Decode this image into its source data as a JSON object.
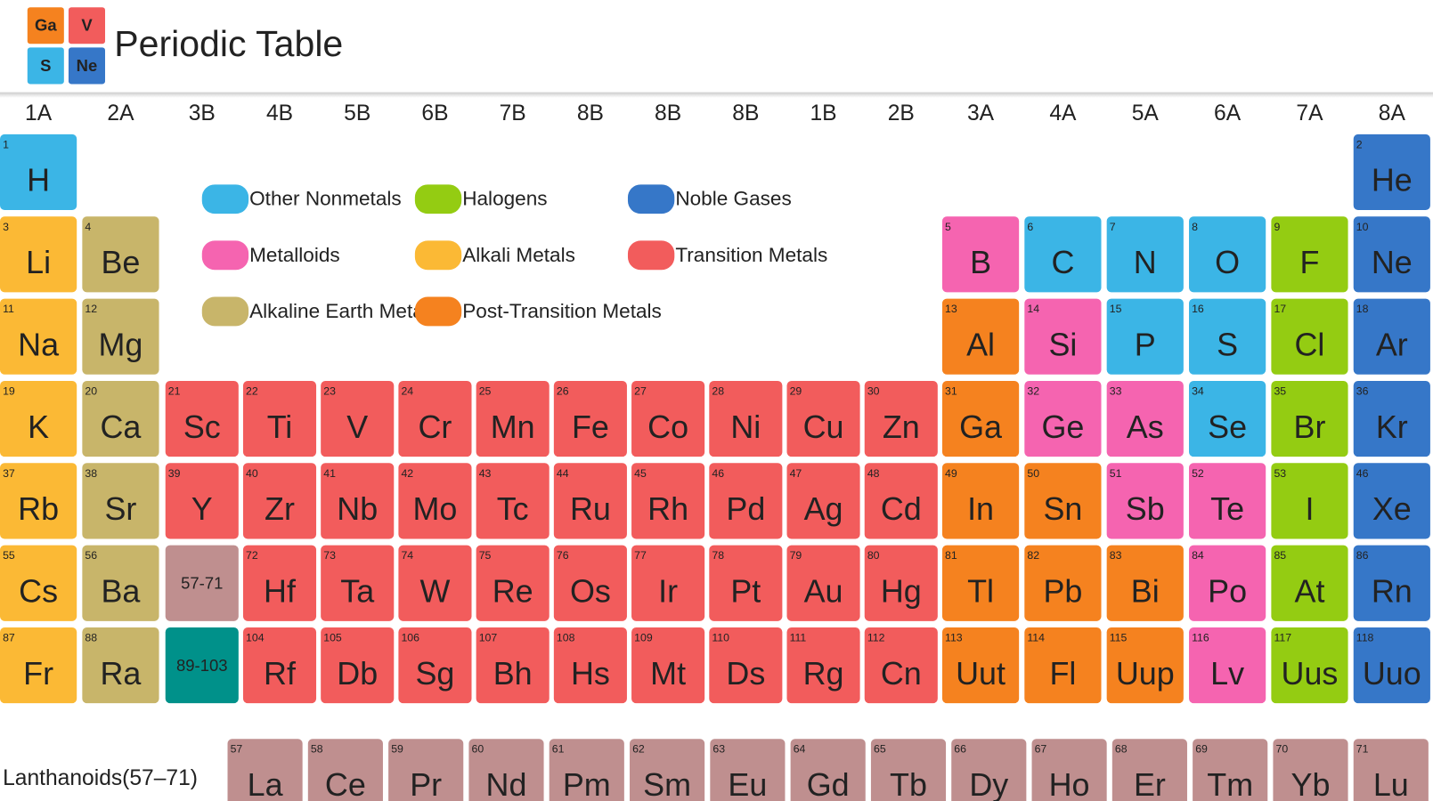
{
  "header": {
    "logo": [
      {
        "symbol": "Ga",
        "color": "#f5821f"
      },
      {
        "symbol": "V",
        "color": "#f25c5c"
      },
      {
        "symbol": "S",
        "color": "#3bb5e6"
      },
      {
        "symbol": "Ne",
        "color": "#3677c8"
      }
    ],
    "title": "Periodic Table"
  },
  "groups": [
    "1A",
    "2A",
    "3B",
    "4B",
    "5B",
    "6B",
    "7B",
    "8B",
    "8B",
    "8B",
    "1B",
    "2B",
    "3A",
    "4A",
    "5A",
    "6A",
    "7A",
    "8A"
  ],
  "legend": [
    {
      "name": "Other Nonmetals",
      "color": "#3bb5e6"
    },
    {
      "name": "Metalloids",
      "color": "#f564b0"
    },
    {
      "name": "Alkaline Earth Metals",
      "color": "#c8b56a"
    },
    {
      "name": "Halogens",
      "color": "#94cc12"
    },
    {
      "name": "Alkali Metals",
      "color": "#fbb935"
    },
    {
      "name": "Post-Transition Metals",
      "color": "#f5821f"
    },
    {
      "name": "Noble Gases",
      "color": "#3677c8"
    },
    {
      "name": "Transition Metals",
      "color": "#f25c5c"
    }
  ],
  "rows": [
    [
      {
        "number": 1,
        "symbol": "H",
        "color": "#3bb5e6"
      },
      {
        "number": 2,
        "symbol": "He",
        "color": "#3677c8"
      }
    ],
    [
      {
        "number": 3,
        "symbol": "Li",
        "color": "#fbb935"
      },
      {
        "number": 4,
        "symbol": "Be",
        "color": "#c8b56a"
      },
      {
        "number": 5,
        "symbol": "B",
        "color": "#f564b0"
      },
      {
        "number": 6,
        "symbol": "C",
        "color": "#3bb5e6"
      },
      {
        "number": 7,
        "symbol": "N",
        "color": "#3bb5e6"
      },
      {
        "number": 8,
        "symbol": "O",
        "color": "#3bb5e6"
      },
      {
        "number": 9,
        "symbol": "F",
        "color": "#94cc12"
      },
      {
        "number": 10,
        "symbol": "Ne",
        "color": "#3677c8"
      }
    ],
    [
      {
        "number": 11,
        "symbol": "Na",
        "color": "#fbb935"
      },
      {
        "number": 12,
        "symbol": "Mg",
        "color": "#c8b56a"
      },
      {
        "number": 13,
        "symbol": "Al",
        "color": "#f5821f"
      },
      {
        "number": 14,
        "symbol": "Si",
        "color": "#f564b0"
      },
      {
        "number": 15,
        "symbol": "P",
        "color": "#3bb5e6"
      },
      {
        "number": 16,
        "symbol": "S",
        "color": "#3bb5e6"
      },
      {
        "number": 17,
        "symbol": "Cl",
        "color": "#94cc12"
      },
      {
        "number": 18,
        "symbol": "Ar",
        "color": "#3677c8"
      }
    ],
    [
      {
        "number": 19,
        "symbol": "K",
        "color": "#fbb935"
      },
      {
        "number": 20,
        "symbol": "Ca",
        "color": "#c8b56a"
      },
      {
        "number": 21,
        "symbol": "Sc",
        "color": "#f25c5c"
      },
      {
        "number": 22,
        "symbol": "Ti",
        "color": "#f25c5c"
      },
      {
        "number": 23,
        "symbol": "V",
        "color": "#f25c5c"
      },
      {
        "number": 24,
        "symbol": "Cr",
        "color": "#f25c5c"
      },
      {
        "number": 25,
        "symbol": "Mn",
        "color": "#f25c5c"
      },
      {
        "number": 26,
        "symbol": "Fe",
        "color": "#f25c5c"
      },
      {
        "number": 27,
        "symbol": "Co",
        "color": "#f25c5c"
      },
      {
        "number": 28,
        "symbol": "Ni",
        "color": "#f25c5c"
      },
      {
        "number": 29,
        "symbol": "Cu",
        "color": "#f25c5c"
      },
      {
        "number": 30,
        "symbol": "Zn",
        "color": "#f25c5c"
      },
      {
        "number": 31,
        "symbol": "Ga",
        "color": "#f5821f"
      },
      {
        "number": 32,
        "symbol": "Ge",
        "color": "#f564b0"
      },
      {
        "number": 33,
        "symbol": "As",
        "color": "#f564b0"
      },
      {
        "number": 34,
        "symbol": "Se",
        "color": "#3bb5e6"
      },
      {
        "number": 35,
        "symbol": "Br",
        "color": "#94cc12"
      },
      {
        "number": 36,
        "symbol": "Kr",
        "color": "#3677c8"
      }
    ],
    [
      {
        "number": 37,
        "symbol": "Rb",
        "color": "#fbb935"
      },
      {
        "number": 38,
        "symbol": "Sr",
        "color": "#c8b56a"
      },
      {
        "number": 39,
        "symbol": "Y",
        "color": "#f25c5c"
      },
      {
        "number": 40,
        "symbol": "Zr",
        "color": "#f25c5c"
      },
      {
        "number": 41,
        "symbol": "Nb",
        "color": "#f25c5c"
      },
      {
        "number": 42,
        "symbol": "Mo",
        "color": "#f25c5c"
      },
      {
        "number": 43,
        "symbol": "Tc",
        "color": "#f25c5c"
      },
      {
        "number": 44,
        "symbol": "Ru",
        "color": "#f25c5c"
      },
      {
        "number": 45,
        "symbol": "Rh",
        "color": "#f25c5c"
      },
      {
        "number": 46,
        "symbol": "Pd",
        "color": "#f25c5c"
      },
      {
        "number": 47,
        "symbol": "Ag",
        "color": "#f25c5c"
      },
      {
        "number": 48,
        "symbol": "Cd",
        "color": "#f25c5c"
      },
      {
        "number": 49,
        "symbol": "In",
        "color": "#f5821f"
      },
      {
        "number": 50,
        "symbol": "Sn",
        "color": "#f5821f"
      },
      {
        "number": 51,
        "symbol": "Sb",
        "color": "#f564b0"
      },
      {
        "number": 52,
        "symbol": "Te",
        "color": "#f564b0"
      },
      {
        "number": 53,
        "symbol": "I",
        "color": "#94cc12"
      },
      {
        "number": 46,
        "symbol": "Xe",
        "color": "#3677c8"
      }
    ],
    [
      {
        "number": 55,
        "symbol": "Cs",
        "color": "#fbb935"
      },
      {
        "number": 56,
        "symbol": "Ba",
        "color": "#c8b56a"
      },
      {
        "label": "57-71",
        "color": "#bf8f8f"
      },
      {
        "number": 72,
        "symbol": "Hf",
        "color": "#f25c5c"
      },
      {
        "number": 73,
        "symbol": "Ta",
        "color": "#f25c5c"
      },
      {
        "number": 74,
        "symbol": "W",
        "color": "#f25c5c"
      },
      {
        "number": 75,
        "symbol": "Re",
        "color": "#f25c5c"
      },
      {
        "number": 76,
        "symbol": "Os",
        "color": "#f25c5c"
      },
      {
        "number": 77,
        "symbol": "Ir",
        "color": "#f25c5c"
      },
      {
        "number": 78,
        "symbol": "Pt",
        "color": "#f25c5c"
      },
      {
        "number": 79,
        "symbol": "Au",
        "color": "#f25c5c"
      },
      {
        "number": 80,
        "symbol": "Hg",
        "color": "#f25c5c"
      },
      {
        "number": 81,
        "symbol": "Tl",
        "color": "#f5821f"
      },
      {
        "number": 82,
        "symbol": "Pb",
        "color": "#f5821f"
      },
      {
        "number": 83,
        "symbol": "Bi",
        "color": "#f5821f"
      },
      {
        "number": 84,
        "symbol": "Po",
        "color": "#f564b0"
      },
      {
        "number": 85,
        "symbol": "At",
        "color": "#94cc12"
      },
      {
        "number": 86,
        "symbol": "Rn",
        "color": "#3677c8"
      }
    ],
    [
      {
        "number": 87,
        "symbol": "Fr",
        "color": "#fbb935"
      },
      {
        "number": 88,
        "symbol": "Ra",
        "color": "#c8b56a"
      },
      {
        "label": "89-103",
        "color": "#00918a"
      },
      {
        "number": 104,
        "symbol": "Rf",
        "color": "#f25c5c"
      },
      {
        "number": 105,
        "symbol": "Db",
        "color": "#f25c5c"
      },
      {
        "number": 106,
        "symbol": "Sg",
        "color": "#f25c5c"
      },
      {
        "number": 107,
        "symbol": "Bh",
        "color": "#f25c5c"
      },
      {
        "number": 108,
        "symbol": "Hs",
        "color": "#f25c5c"
      },
      {
        "number": 109,
        "symbol": "Mt",
        "color": "#f25c5c"
      },
      {
        "number": 110,
        "symbol": "Ds",
        "color": "#f25c5c"
      },
      {
        "number": 111,
        "symbol": "Rg",
        "color": "#f25c5c"
      },
      {
        "number": 112,
        "symbol": "Cn",
        "color": "#f25c5c"
      },
      {
        "number": 113,
        "symbol": "Uut",
        "color": "#f5821f"
      },
      {
        "number": 114,
        "symbol": "Fl",
        "color": "#f5821f"
      },
      {
        "number": 115,
        "symbol": "Uup",
        "color": "#f5821f"
      },
      {
        "number": 116,
        "symbol": "Lv",
        "color": "#f564b0"
      },
      {
        "number": 117,
        "symbol": "Uus",
        "color": "#94cc12"
      },
      {
        "number": 118,
        "symbol": "Uuo",
        "color": "#3677c8"
      }
    ]
  ],
  "lanthanoids": {
    "label": "Lanthanoids(57–71)",
    "color": "#bf8f8f",
    "elements": [
      {
        "number": 57,
        "symbol": "La"
      },
      {
        "number": 58,
        "symbol": "Ce"
      },
      {
        "number": 59,
        "symbol": "Pr"
      },
      {
        "number": 60,
        "symbol": "Nd"
      },
      {
        "number": 61,
        "symbol": "Pm"
      },
      {
        "number": 62,
        "symbol": "Sm"
      },
      {
        "number": 63,
        "symbol": "Eu"
      },
      {
        "number": 64,
        "symbol": "Gd"
      },
      {
        "number": 65,
        "symbol": "Tb"
      },
      {
        "number": 66,
        "symbol": "Dy"
      },
      {
        "number": 67,
        "symbol": "Ho"
      },
      {
        "number": 68,
        "symbol": "Er"
      },
      {
        "number": 69,
        "symbol": "Tm"
      },
      {
        "number": 70,
        "symbol": "Yb"
      },
      {
        "number": 71,
        "symbol": "Lu"
      }
    ]
  }
}
